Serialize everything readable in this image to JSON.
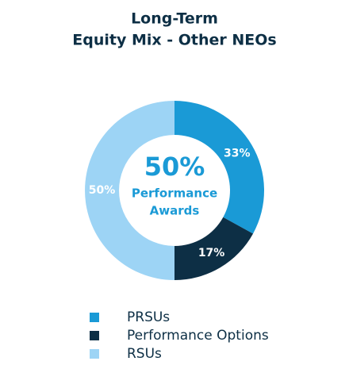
{
  "chart_data": {
    "type": "donut",
    "title": [
      "Long-Term",
      "Equity Mix - Other NEOs"
    ],
    "categories": [
      "PRSUs",
      "Performance Options",
      "RSUs"
    ],
    "values": [
      33,
      17,
      50
    ],
    "value_labels": [
      "33%",
      "17%",
      "50%"
    ],
    "colors": [
      "#1a9ad6",
      "#0d2f45",
      "#9dd4f5"
    ],
    "center": {
      "value": 50,
      "label": "50%"
    },
    "center_text": [
      "Performance",
      "Awards"
    ],
    "legend": "bottom-left"
  }
}
